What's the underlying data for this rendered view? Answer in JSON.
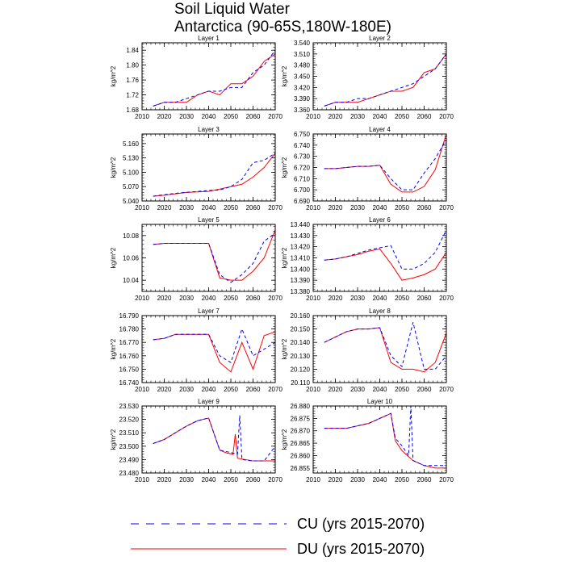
{
  "figure": {
    "title_line1": "Soil Liquid Water",
    "title_line2": "Antarctica (90-65S,180W-180E)"
  },
  "legend": {
    "cu_label": "CU (yrs 2015-2070)",
    "du_label": "DU (yrs 2015-2070)",
    "cu_color": "#0000ff",
    "du_color": "#ff0000"
  },
  "chart_data": [
    {
      "type": "line",
      "title": "Layer 1",
      "ylabel": "kg/m^2",
      "xlim": [
        2010,
        2070
      ],
      "ylim": [
        1.68,
        1.86
      ],
      "xticks": [
        2010,
        2020,
        2030,
        2040,
        2050,
        2060,
        2070
      ],
      "yticks": [
        "1.68",
        "1.72",
        "1.76",
        "1.80",
        "1.84"
      ],
      "ytick_values": [
        1.68,
        1.72,
        1.76,
        1.8,
        1.84
      ],
      "series": [
        {
          "name": "CU",
          "x": [
            2015,
            2020,
            2025,
            2030,
            2035,
            2040,
            2045,
            2050,
            2055,
            2060,
            2065,
            2070
          ],
          "values": [
            1.69,
            1.7,
            1.7,
            1.71,
            1.72,
            1.73,
            1.73,
            1.74,
            1.74,
            1.78,
            1.8,
            1.84
          ]
        },
        {
          "name": "DU",
          "x": [
            2015,
            2020,
            2025,
            2030,
            2035,
            2040,
            2045,
            2050,
            2055,
            2060,
            2065,
            2070
          ],
          "values": [
            1.69,
            1.7,
            1.7,
            1.7,
            1.72,
            1.73,
            1.72,
            1.75,
            1.75,
            1.77,
            1.81,
            1.83
          ]
        }
      ]
    },
    {
      "type": "line",
      "title": "Layer 2",
      "ylabel": "kg/m^2",
      "xlim": [
        2010,
        2070
      ],
      "ylim": [
        3.36,
        3.54
      ],
      "xticks": [
        2010,
        2020,
        2030,
        2040,
        2050,
        2060,
        2070
      ],
      "yticks": [
        "3.360",
        "3.390",
        "3.420",
        "3.450",
        "3.480",
        "3.510",
        "3.540"
      ],
      "ytick_values": [
        3.36,
        3.39,
        3.42,
        3.45,
        3.48,
        3.51,
        3.54
      ],
      "series": [
        {
          "name": "CU",
          "x": [
            2015,
            2020,
            2025,
            2030,
            2035,
            2040,
            2045,
            2050,
            2055,
            2060,
            2065,
            2070
          ],
          "values": [
            3.37,
            3.38,
            3.38,
            3.39,
            3.39,
            3.4,
            3.41,
            3.42,
            3.43,
            3.45,
            3.47,
            3.51
          ]
        },
        {
          "name": "DU",
          "x": [
            2015,
            2020,
            2025,
            2030,
            2035,
            2040,
            2045,
            2050,
            2055,
            2060,
            2065,
            2070
          ],
          "values": [
            3.37,
            3.38,
            3.38,
            3.38,
            3.39,
            3.4,
            3.41,
            3.41,
            3.42,
            3.46,
            3.47,
            3.51
          ]
        }
      ]
    },
    {
      "type": "line",
      "title": "Layer 3",
      "ylabel": "kg/m^2",
      "xlim": [
        2010,
        2070
      ],
      "ylim": [
        5.04,
        5.18
      ],
      "xticks": [
        2010,
        2020,
        2030,
        2040,
        2050,
        2060,
        2070
      ],
      "yticks": [
        "5.040",
        "5.070",
        "5.100",
        "5.130",
        "5.160"
      ],
      "ytick_values": [
        5.04,
        5.07,
        5.1,
        5.13,
        5.16
      ],
      "series": [
        {
          "name": "CU",
          "x": [
            2015,
            2020,
            2025,
            2030,
            2035,
            2040,
            2045,
            2050,
            2055,
            2060,
            2065,
            2070
          ],
          "values": [
            5.05,
            5.053,
            5.056,
            5.058,
            5.06,
            5.062,
            5.063,
            5.07,
            5.085,
            5.12,
            5.125,
            5.14
          ]
        },
        {
          "name": "DU",
          "x": [
            2015,
            2020,
            2025,
            2030,
            2035,
            2040,
            2045,
            2050,
            2055,
            2060,
            2065,
            2070
          ],
          "values": [
            5.05,
            5.052,
            5.055,
            5.058,
            5.059,
            5.06,
            5.065,
            5.07,
            5.075,
            5.09,
            5.11,
            5.14
          ]
        }
      ]
    },
    {
      "type": "line",
      "title": "Layer 4",
      "ylabel": "kg/m^2",
      "xlim": [
        2010,
        2070
      ],
      "ylim": [
        6.69,
        6.75
      ],
      "xticks": [
        2010,
        2020,
        2030,
        2040,
        2050,
        2060,
        2070
      ],
      "yticks": [
        "6.690",
        "6.700",
        "6.710",
        "6.720",
        "6.730",
        "6.740",
        "6.750"
      ],
      "ytick_values": [
        6.69,
        6.7,
        6.71,
        6.72,
        6.73,
        6.74,
        6.75
      ],
      "series": [
        {
          "name": "CU",
          "x": [
            2015,
            2020,
            2025,
            2030,
            2035,
            2040,
            2045,
            2050,
            2055,
            2060,
            2065,
            2070
          ],
          "values": [
            6.719,
            6.719,
            6.72,
            6.721,
            6.721,
            6.722,
            6.71,
            6.7,
            6.7,
            6.715,
            6.728,
            6.745
          ]
        },
        {
          "name": "DU",
          "x": [
            2015,
            2020,
            2025,
            2030,
            2035,
            2040,
            2045,
            2050,
            2055,
            2060,
            2065,
            2070
          ],
          "values": [
            6.719,
            6.719,
            6.72,
            6.721,
            6.721,
            6.722,
            6.705,
            6.698,
            6.698,
            6.703,
            6.718,
            6.75
          ]
        }
      ]
    },
    {
      "type": "line",
      "title": "Layer 5",
      "ylabel": "kg/m^2",
      "xlim": [
        2010,
        2070
      ],
      "ylim": [
        10.03,
        10.09
      ],
      "xticks": [
        2010,
        2020,
        2030,
        2040,
        2050,
        2060,
        2070
      ],
      "yticks": [
        "10.04",
        "10.06",
        "10.08"
      ],
      "ytick_values": [
        10.04,
        10.06,
        10.08
      ],
      "series": [
        {
          "name": "CU",
          "x": [
            2015,
            2020,
            2025,
            2030,
            2035,
            2040,
            2045,
            2050,
            2055,
            2060,
            2065,
            2070
          ],
          "values": [
            10.072,
            10.073,
            10.073,
            10.073,
            10.073,
            10.073,
            10.045,
            10.038,
            10.045,
            10.055,
            10.075,
            10.082
          ]
        },
        {
          "name": "DU",
          "x": [
            2015,
            2020,
            2025,
            2030,
            2035,
            2040,
            2045,
            2050,
            2055,
            2060,
            2065,
            2070
          ],
          "values": [
            10.072,
            10.073,
            10.073,
            10.073,
            10.073,
            10.073,
            10.042,
            10.04,
            10.04,
            10.048,
            10.06,
            10.085
          ]
        }
      ]
    },
    {
      "type": "line",
      "title": "Layer 6",
      "ylabel": "kg/m^2",
      "xlim": [
        2010,
        2070
      ],
      "ylim": [
        13.38,
        13.44
      ],
      "xticks": [
        2010,
        2020,
        2030,
        2040,
        2050,
        2060,
        2070
      ],
      "yticks": [
        "13.380",
        "13.390",
        "13.400",
        "13.410",
        "13.420",
        "13.430",
        "13.440"
      ],
      "ytick_values": [
        13.38,
        13.39,
        13.4,
        13.41,
        13.42,
        13.43,
        13.44
      ],
      "series": [
        {
          "name": "CU",
          "x": [
            2015,
            2020,
            2025,
            2030,
            2035,
            2040,
            2045,
            2050,
            2055,
            2060,
            2065,
            2070
          ],
          "values": [
            13.408,
            13.409,
            13.411,
            13.414,
            13.417,
            13.419,
            13.421,
            13.4,
            13.4,
            13.405,
            13.415,
            13.435
          ]
        },
        {
          "name": "DU",
          "x": [
            2015,
            2020,
            2025,
            2030,
            2035,
            2040,
            2045,
            2050,
            2055,
            2060,
            2065,
            2070
          ],
          "values": [
            13.408,
            13.409,
            13.411,
            13.413,
            13.416,
            13.418,
            13.405,
            13.39,
            13.392,
            13.395,
            13.4,
            13.415
          ]
        }
      ]
    },
    {
      "type": "line",
      "title": "Layer 7",
      "ylabel": "kg/m^2",
      "xlim": [
        2010,
        2070
      ],
      "ylim": [
        16.74,
        16.79
      ],
      "xticks": [
        2010,
        2020,
        2030,
        2040,
        2050,
        2060,
        2070
      ],
      "yticks": [
        "16.740",
        "16.750",
        "16.760",
        "16.770",
        "16.780",
        "16.790"
      ],
      "ytick_values": [
        16.74,
        16.75,
        16.76,
        16.77,
        16.78,
        16.79
      ],
      "series": [
        {
          "name": "CU",
          "x": [
            2015,
            2020,
            2025,
            2030,
            2035,
            2040,
            2045,
            2050,
            2055,
            2060,
            2065,
            2070
          ],
          "values": [
            16.772,
            16.773,
            16.776,
            16.776,
            16.776,
            16.776,
            16.76,
            16.755,
            16.78,
            16.76,
            16.765,
            16.77
          ]
        },
        {
          "name": "DU",
          "x": [
            2015,
            2020,
            2025,
            2030,
            2035,
            2040,
            2045,
            2050,
            2055,
            2060,
            2065,
            2070
          ],
          "values": [
            16.772,
            16.773,
            16.776,
            16.776,
            16.776,
            16.776,
            16.755,
            16.748,
            16.77,
            16.75,
            16.775,
            16.778
          ]
        }
      ]
    },
    {
      "type": "line",
      "title": "Layer 8",
      "ylabel": "kg/m^2",
      "xlim": [
        2010,
        2070
      ],
      "ylim": [
        20.11,
        20.16
      ],
      "xticks": [
        2010,
        2020,
        2030,
        2040,
        2050,
        2060,
        2070
      ],
      "yticks": [
        "20.110",
        "20.120",
        "20.130",
        "20.140",
        "20.150",
        "20.160"
      ],
      "ytick_values": [
        20.11,
        20.12,
        20.13,
        20.14,
        20.15,
        20.16
      ],
      "series": [
        {
          "name": "CU",
          "x": [
            2015,
            2020,
            2025,
            2030,
            2035,
            2040,
            2045,
            2050,
            2055,
            2060,
            2065,
            2070
          ],
          "values": [
            20.14,
            20.144,
            20.148,
            20.15,
            20.15,
            20.151,
            20.13,
            20.122,
            20.155,
            20.12,
            20.12,
            20.13
          ]
        },
        {
          "name": "DU",
          "x": [
            2015,
            2020,
            2025,
            2030,
            2035,
            2040,
            2045,
            2050,
            2055,
            2060,
            2065,
            2070
          ],
          "values": [
            20.14,
            20.144,
            20.148,
            20.15,
            20.15,
            20.151,
            20.125,
            20.12,
            20.12,
            20.118,
            20.125,
            20.147
          ]
        }
      ]
    },
    {
      "type": "line",
      "title": "Layer 9",
      "ylabel": "kg/m^2",
      "xlim": [
        2010,
        2070
      ],
      "ylim": [
        23.48,
        23.53
      ],
      "xticks": [
        2010,
        2020,
        2030,
        2040,
        2050,
        2060,
        2070
      ],
      "yticks": [
        "23.480",
        "23.490",
        "23.500",
        "23.510",
        "23.520",
        "23.530"
      ],
      "ytick_values": [
        23.48,
        23.49,
        23.5,
        23.51,
        23.52,
        23.53
      ],
      "series": [
        {
          "name": "CU",
          "x": [
            2015,
            2020,
            2025,
            2030,
            2035,
            2040,
            2045,
            2048,
            2053,
            2054,
            2055,
            2060,
            2065,
            2070
          ],
          "values": [
            23.502,
            23.505,
            23.51,
            23.515,
            23.519,
            23.521,
            23.497,
            23.496,
            23.494,
            23.523,
            23.49,
            23.489,
            23.489,
            23.5
          ]
        },
        {
          "name": "DU",
          "x": [
            2015,
            2020,
            2025,
            2030,
            2035,
            2040,
            2045,
            2048,
            2051,
            2052,
            2053,
            2060,
            2065,
            2070
          ],
          "values": [
            23.502,
            23.505,
            23.51,
            23.515,
            23.519,
            23.521,
            23.497,
            23.495,
            23.494,
            23.509,
            23.491,
            23.489,
            23.489,
            23.489
          ]
        }
      ]
    },
    {
      "type": "line",
      "title": "Layer 10",
      "ylabel": "kg/m^2",
      "xlim": [
        2010,
        2070
      ],
      "ylim": [
        26.853,
        26.88
      ],
      "xticks": [
        2010,
        2020,
        2030,
        2040,
        2050,
        2060,
        2070
      ],
      "yticks": [
        "26.855",
        "26.860",
        "26.865",
        "26.870",
        "26.875",
        "26.880"
      ],
      "ytick_values": [
        26.855,
        26.86,
        26.865,
        26.87,
        26.875,
        26.88
      ],
      "series": [
        {
          "name": "CU",
          "x": [
            2015,
            2020,
            2025,
            2030,
            2035,
            2040,
            2045,
            2047,
            2050,
            2053,
            2054,
            2055,
            2060,
            2065,
            2070
          ],
          "values": [
            26.871,
            26.871,
            26.871,
            26.872,
            26.873,
            26.875,
            26.877,
            26.867,
            26.864,
            26.86,
            26.88,
            26.858,
            26.856,
            26.856,
            26.856
          ]
        },
        {
          "name": "DU",
          "x": [
            2015,
            2020,
            2025,
            2030,
            2035,
            2040,
            2045,
            2047,
            2050,
            2055,
            2060,
            2065,
            2070
          ],
          "values": [
            26.871,
            26.871,
            26.871,
            26.872,
            26.873,
            26.875,
            26.877,
            26.866,
            26.862,
            26.858,
            26.856,
            26.855,
            26.855
          ]
        }
      ]
    }
  ]
}
